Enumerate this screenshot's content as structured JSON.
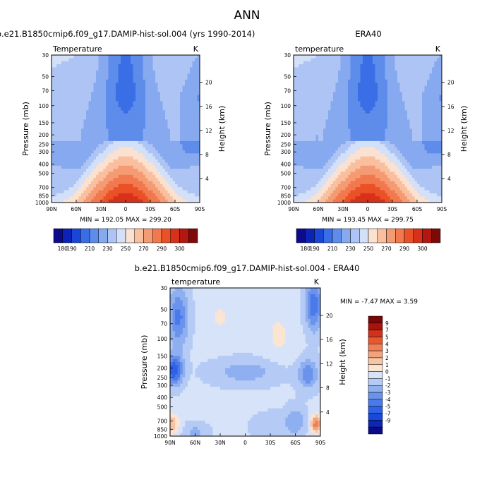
{
  "page": {
    "title": "ANN"
  },
  "scales": {
    "temperature": {
      "colors": [
        "#0b0b8c",
        "#0d23b5",
        "#1a46d8",
        "#3a6ee6",
        "#5d8ceb",
        "#86a9ef",
        "#adc4f4",
        "#d3e0f8",
        "#fbe1cf",
        "#f9bf9f",
        "#f59b73",
        "#f2784d",
        "#ea5127",
        "#d8301a",
        "#b3170f",
        "#7d0a08"
      ],
      "levels": [
        180,
        190,
        200,
        210,
        220,
        230,
        240,
        250,
        260,
        270,
        280,
        290,
        300
      ],
      "labels": [
        "180",
        "190",
        "210",
        "230",
        "250",
        "270",
        "290",
        "300"
      ]
    },
    "difference": {
      "colors": [
        "#0a0a8a",
        "#0d26b5",
        "#1849da",
        "#2f62e6",
        "#4a7ae9",
        "#6b93ec",
        "#8fb0f0",
        "#b5cbf5",
        "#d6e3f8",
        "#fbe4d1",
        "#f7c5a6",
        "#f3a37b",
        "#ef7f54",
        "#e6582f",
        "#d0311b",
        "#a8140c",
        "#7a0707"
      ],
      "labels": [
        "-9",
        "-7",
        "-5",
        "-4",
        "-3",
        "-2",
        "-1",
        "0",
        "1",
        "2",
        "3",
        "4",
        "5",
        "7",
        "9"
      ]
    }
  },
  "chart_data": [
    {
      "type": "heatmap",
      "panel": "model",
      "title": "b.e21.B1850cmip6.f09_g17.DAMIP-hist-sol.004 (yrs 1990-2014)",
      "variable": "Temperature",
      "units": "K",
      "ylabel": "Pressure (mb)",
      "ylabel_right": "Height (km)",
      "xlabel": "",
      "x_ticks": [
        "90N",
        "60N",
        "30N",
        "0",
        "30S",
        "60S",
        "90S"
      ],
      "y_ticks": [
        30,
        50,
        70,
        100,
        150,
        200,
        250,
        300,
        400,
        500,
        700,
        850,
        1000
      ],
      "height_ticks": [
        20,
        16,
        12,
        8,
        4
      ],
      "ylim": [
        30,
        1000
      ],
      "y_scale": "log",
      "stats": "MIN = 192.05  MAX = 299.20",
      "min": 192.05,
      "max": 299.2
    },
    {
      "type": "heatmap",
      "panel": "obs",
      "title": "ERA40",
      "variable": "temperature",
      "units": "K",
      "ylabel": "Pressure (mb)",
      "ylabel_right": "Height (km)",
      "xlabel": "",
      "x_ticks": [
        "90N",
        "60N",
        "30N",
        "0",
        "30S",
        "60S",
        "90S"
      ],
      "y_ticks": [
        30,
        50,
        70,
        100,
        150,
        200,
        250,
        300,
        400,
        500,
        700,
        850,
        1000
      ],
      "height_ticks": [
        20,
        16,
        12,
        8,
        4
      ],
      "ylim": [
        30,
        1000
      ],
      "y_scale": "log",
      "stats": "MIN = 193.45  MAX = 299.75",
      "min": 193.45,
      "max": 299.75
    },
    {
      "type": "heatmap",
      "panel": "diff",
      "title": "b.e21.B1850cmip6.f09_g17.DAMIP-hist-sol.004 - ERA40",
      "variable": "temperature",
      "units": "K",
      "ylabel": "Pressure (mb)",
      "ylabel_right": "Height (km)",
      "xlabel": "",
      "x_ticks": [
        "90N",
        "60N",
        "30N",
        "0",
        "30S",
        "60S",
        "90S"
      ],
      "y_ticks": [
        30,
        50,
        70,
        100,
        150,
        200,
        250,
        300,
        400,
        500,
        700,
        850,
        1000
      ],
      "height_ticks": [
        20,
        16,
        12,
        8,
        4
      ],
      "ylim": [
        30,
        1000
      ],
      "y_scale": "log",
      "stats": "MIN = -7.47  MAX =  3.59",
      "min": -7.47,
      "max": 3.59
    }
  ]
}
